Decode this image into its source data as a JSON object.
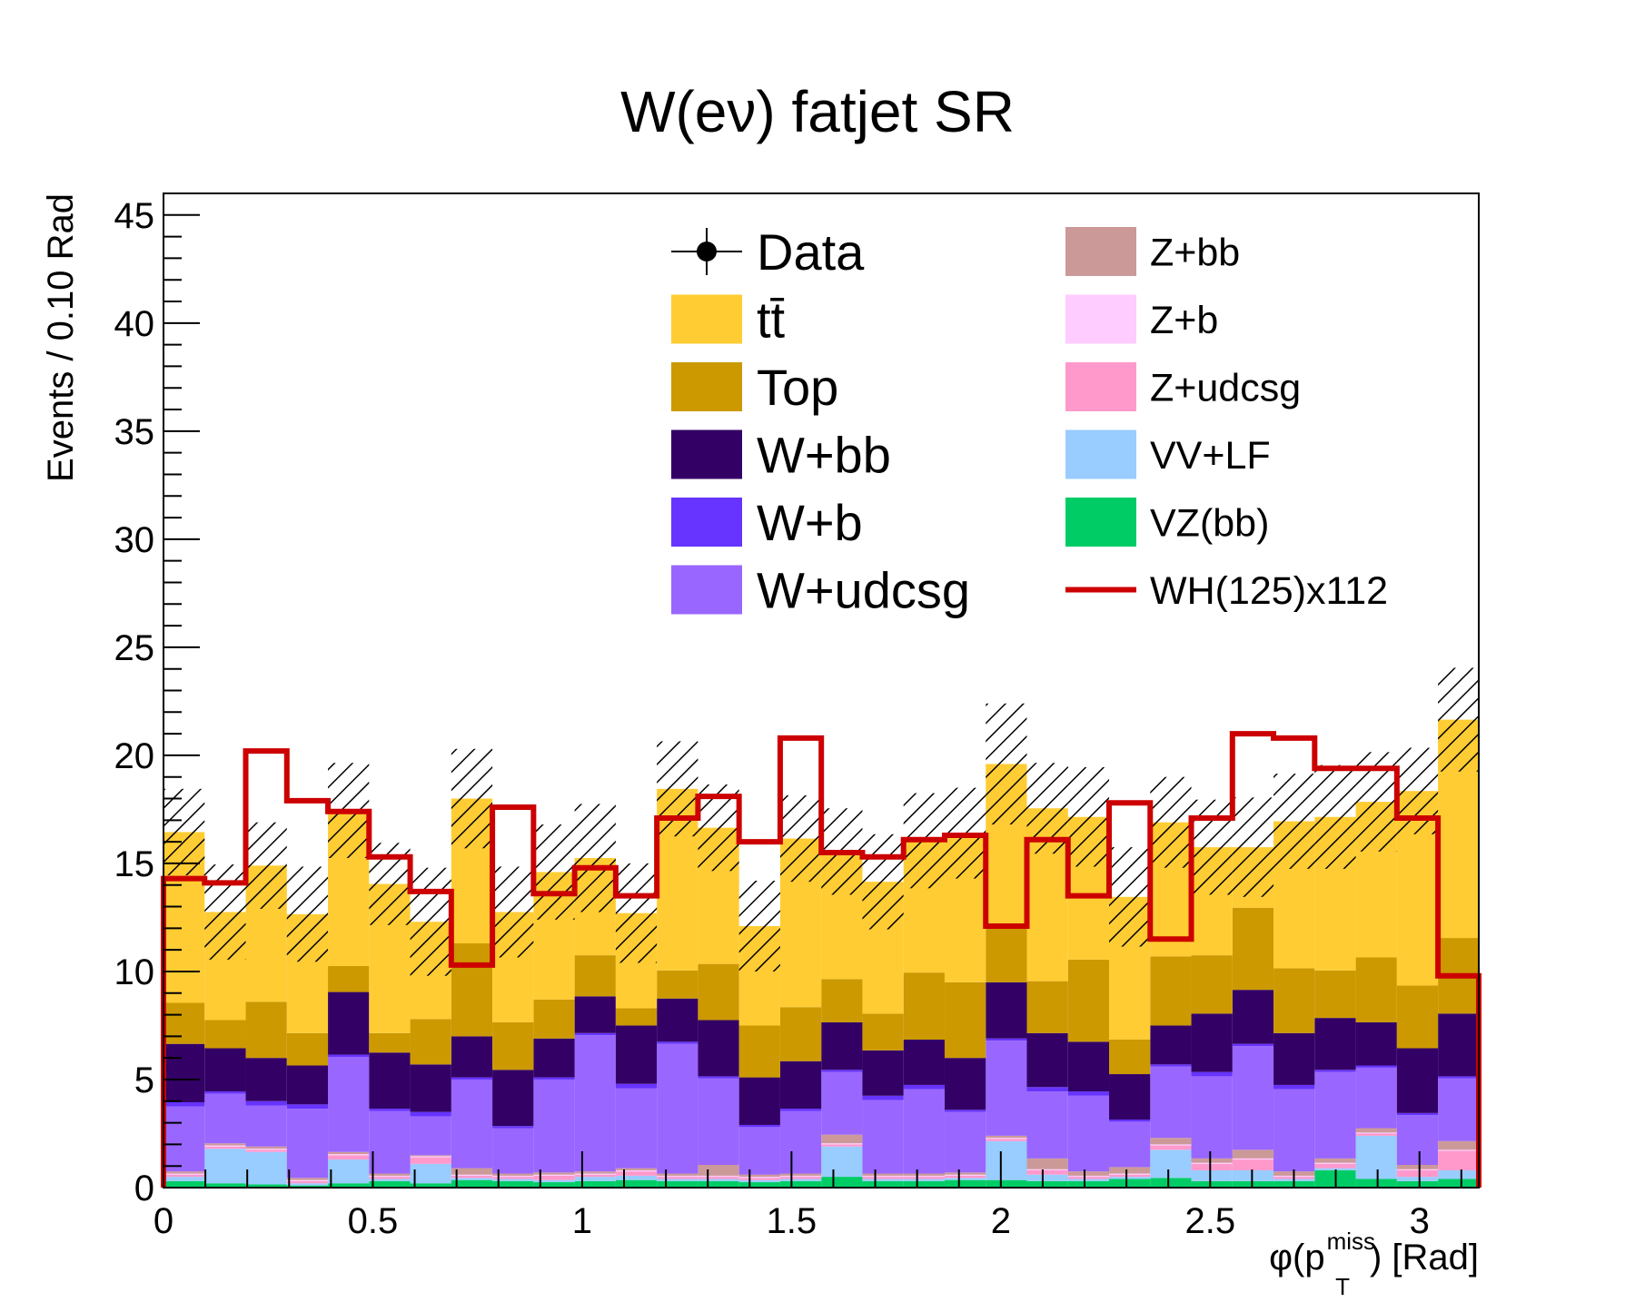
{
  "chart_data": {
    "type": "bar",
    "stacked": true,
    "title": "W(eν) fatjet SR",
    "ylabel": "Events / 0.10 Rad",
    "xlabel": {
      "main": "φ(p",
      "sub": "T",
      "sup": "miss",
      "tail": ") [Rad]"
    },
    "xlim": [
      0,
      3.1416
    ],
    "ylim": [
      0,
      46
    ],
    "bin_width": 0.0982,
    "x_ticks": [
      {
        "value": 0,
        "label": "0"
      },
      {
        "value": 0.5,
        "label": "0.5"
      },
      {
        "value": 1,
        "label": "1"
      },
      {
        "value": 1.5,
        "label": "1.5"
      },
      {
        "value": 2,
        "label": "2"
      },
      {
        "value": 2.5,
        "label": "2.5"
      },
      {
        "value": 3,
        "label": "3"
      }
    ],
    "y_ticks": [
      {
        "value": 0,
        "label": "0"
      },
      {
        "value": 5,
        "label": "5"
      },
      {
        "value": 10,
        "label": "10"
      },
      {
        "value": 15,
        "label": "15"
      },
      {
        "value": 20,
        "label": "20"
      },
      {
        "value": 25,
        "label": "25"
      },
      {
        "value": 30,
        "label": "30"
      },
      {
        "value": 35,
        "label": "35"
      },
      {
        "value": 40,
        "label": "40"
      },
      {
        "value": 45,
        "label": "45"
      }
    ],
    "series": [
      {
        "name": "VZ(bb)",
        "label": "VZ(bb)",
        "color": "#00cc66",
        "values": [
          0.3,
          0.2,
          0.15,
          0.1,
          0.2,
          0.3,
          0.2,
          0.35,
          0.3,
          0.25,
          0.3,
          0.35,
          0.3,
          0.3,
          0.25,
          0.3,
          0.5,
          0.3,
          0.3,
          0.35,
          0.35,
          0.3,
          0.3,
          0.4,
          0.45,
          0.3,
          0.3,
          0.3,
          0.8,
          0.4,
          0.3,
          0.4
        ]
      },
      {
        "name": "VV+LF",
        "label": "VV+LF",
        "color": "#99ccff",
        "values": [
          0.2,
          1.6,
          1.5,
          0.1,
          1.1,
          0.1,
          0.9,
          0.1,
          0.1,
          0.1,
          0.2,
          0.2,
          0.1,
          0.1,
          0.1,
          0.1,
          1.4,
          0.1,
          0.1,
          0.1,
          1.8,
          0.3,
          0.1,
          0.1,
          1.3,
          0.5,
          0.5,
          0.1,
          0.1,
          2.0,
          0.2,
          0.4
        ]
      },
      {
        "name": "Z+udcsg",
        "label": "Z+udcsg",
        "color": "#ff99cc",
        "values": [
          0.1,
          0.1,
          0.1,
          0.1,
          0.2,
          0.1,
          0.3,
          0.1,
          0.1,
          0.2,
          0.1,
          0.2,
          0.1,
          0.1,
          0.1,
          0.1,
          0.1,
          0.1,
          0.1,
          0.1,
          0.1,
          0.2,
          0.1,
          0.1,
          0.2,
          0.3,
          0.5,
          0.1,
          0.2,
          0.1,
          0.3,
          0.9
        ]
      },
      {
        "name": "Z+b",
        "label": "Z+b",
        "color": "#ffccff",
        "values": [
          0.05,
          0.05,
          0.05,
          0.05,
          0.05,
          0.05,
          0.05,
          0.05,
          0.05,
          0.05,
          0.05,
          0.05,
          0.05,
          0.05,
          0.05,
          0.05,
          0.05,
          0.05,
          0.05,
          0.05,
          0.05,
          0.05,
          0.05,
          0.05,
          0.05,
          0.05,
          0.05,
          0.05,
          0.05,
          0.05,
          0.05,
          0.05
        ]
      },
      {
        "name": "Z+bb",
        "label": "Z+bb",
        "color": "#cc9999",
        "values": [
          0.1,
          0.1,
          0.1,
          0.1,
          0.1,
          0.1,
          0.05,
          0.3,
          0.1,
          0.1,
          0.1,
          0.1,
          0.1,
          0.5,
          0.1,
          0.1,
          0.4,
          0.1,
          0.1,
          0.1,
          0.1,
          0.5,
          0.2,
          0.3,
          0.3,
          0.2,
          0.4,
          0.2,
          0.2,
          0.2,
          0.2,
          0.4
        ]
      },
      {
        "name": "W+udcsg",
        "label": "W+udcsg",
        "color": "#9966ff",
        "values": [
          3.0,
          2.3,
          1.9,
          3.2,
          4.4,
          2.9,
          1.8,
          4.1,
          2.1,
          4.3,
          6.3,
          3.7,
          6.0,
          4.0,
          2.2,
          2.9,
          2.9,
          3.4,
          3.9,
          2.8,
          4.4,
          3.1,
          3.5,
          2.1,
          3.3,
          3.8,
          4.8,
          3.8,
          4.0,
          2.8,
          2.3,
          2.9
        ]
      },
      {
        "name": "W+b",
        "label": "W+b",
        "color": "#6633ff",
        "values": [
          0.2,
          0.1,
          0.2,
          0.2,
          0.1,
          0.1,
          0.2,
          0.1,
          0.1,
          0.1,
          0.1,
          0.2,
          0.1,
          0.1,
          0.1,
          0.1,
          0.1,
          0.2,
          0.2,
          0.1,
          0.1,
          0.2,
          0.2,
          0.1,
          0.1,
          0.2,
          0.1,
          0.2,
          0.1,
          0.1,
          0.1,
          0.1
        ]
      },
      {
        "name": "W+bb",
        "label": "W+bb",
        "color": "#330066",
        "values": [
          2.7,
          2.0,
          2.0,
          1.8,
          2.9,
          2.6,
          2.2,
          1.9,
          2.6,
          1.8,
          1.7,
          2.7,
          2.0,
          2.6,
          2.2,
          2.2,
          2.2,
          2.1,
          2.1,
          2.4,
          2.6,
          2.5,
          2.3,
          2.1,
          1.8,
          2.7,
          2.5,
          2.4,
          2.4,
          2.0,
          3.0,
          2.9
        ]
      },
      {
        "name": "Top",
        "label": "Top",
        "color": "#cc9900",
        "values": [
          1.9,
          1.3,
          2.6,
          1.5,
          1.2,
          0.9,
          2.1,
          4.3,
          2.2,
          1.8,
          1.9,
          0.8,
          1.3,
          2.6,
          2.4,
          2.5,
          2.0,
          1.7,
          3.1,
          3.5,
          2.5,
          2.4,
          3.8,
          1.6,
          3.2,
          2.7,
          3.8,
          3.0,
          2.2,
          3.0,
          2.9,
          3.5
        ]
      },
      {
        "name": "ttbar",
        "label": "tt̄",
        "color": "#ffcc33",
        "values": [
          7.9,
          5.0,
          6.3,
          5.5,
          7.2,
          6.9,
          4.5,
          6.7,
          5.1,
          5.9,
          4.5,
          4.4,
          8.4,
          6.3,
          4.6,
          7.8,
          5.9,
          6.1,
          6.1,
          6.9,
          7.6,
          8.0,
          6.6,
          6.6,
          6.2,
          5.0,
          2.8,
          6.8,
          7.1,
          7.2,
          9.0,
          10.1
        ]
      }
    ],
    "total_uncertainty": [
      2.0,
      2.2,
      2.0,
      2.2,
      2.2,
      1.9,
      2.5,
      2.3,
      2.1,
      2.2,
      2.5,
      2.3,
      2.2,
      2.0,
      2.1,
      2.0,
      2.0,
      2.2,
      2.2,
      2.1,
      2.8,
      2.1,
      2.3,
      2.3,
      2.1,
      2.2,
      2.3,
      2.2,
      2.4,
      2.3,
      2.0,
      2.4
    ],
    "signal": {
      "name": "WH(125)x112",
      "label": "WH(125)x112",
      "color": "#cc0000",
      "values": [
        14.3,
        14.1,
        20.2,
        17.9,
        17.4,
        15.3,
        13.7,
        10.3,
        17.6,
        13.6,
        14.8,
        13.5,
        17.1,
        18.1,
        16.0,
        20.8,
        15.5,
        15.3,
        16.1,
        16.3,
        12.1,
        16.1,
        13.5,
        17.8,
        11.5,
        17.1,
        21.0,
        20.8,
        19.4,
        19.4,
        17.1,
        9.8
      ]
    },
    "data": {
      "label": "Data",
      "values": []
    },
    "legend": {
      "placement": "top-right",
      "left_column": [
        "Data",
        "ttbar",
        "Top",
        "W+bb",
        "W+b",
        "W+udcsg"
      ],
      "right_column": [
        "Z+bb",
        "Z+b",
        "Z+udcsg",
        "VV+LF",
        "VZ(bb)",
        "WH(125)x112"
      ]
    },
    "colors": {
      "frame": "#000000",
      "hatch": "#000000"
    }
  }
}
